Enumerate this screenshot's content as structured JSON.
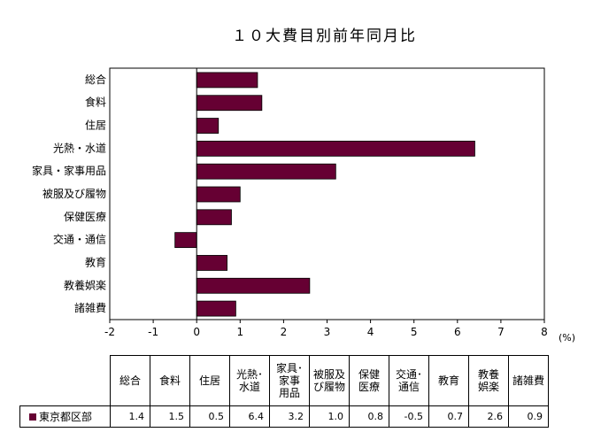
{
  "title": "１０大費目別前年同月比",
  "chart_data": {
    "type": "bar",
    "orientation": "horizontal",
    "title": "１０大費目別前年同月比",
    "categories": [
      "総合",
      "食料",
      "住居",
      "光熱・水道",
      "家具・家事用品",
      "被服及び履物",
      "保健医療",
      "交通・通信",
      "教育",
      "教養娯楽",
      "諸雑費"
    ],
    "series": [
      {
        "name": "東京都区部",
        "values": [
          1.4,
          1.5,
          0.5,
          6.4,
          3.2,
          1.0,
          0.8,
          -0.5,
          0.7,
          2.6,
          0.9
        ],
        "color": "#660033"
      }
    ],
    "xlim": [
      -2,
      8
    ],
    "xticks": [
      "-2",
      "-1",
      "0",
      "1",
      "2",
      "3",
      "4",
      "5",
      "6",
      "7",
      "8"
    ],
    "xunit": "(%)",
    "grid": false
  },
  "table": {
    "headers": [
      [
        "総合"
      ],
      [
        "食料"
      ],
      [
        "住居"
      ],
      [
        "光熱･",
        "水道"
      ],
      [
        "家具･",
        "家事",
        "用品"
      ],
      [
        "被服及",
        "び履物"
      ],
      [
        "保健",
        "医療"
      ],
      [
        "交通･",
        "通信"
      ],
      [
        "教育"
      ],
      [
        "教養",
        "娯楽"
      ],
      [
        "諸雑費"
      ]
    ],
    "row_label": "東京都区部",
    "values": [
      "1.4",
      "1.5",
      "0.5",
      "6.4",
      "3.2",
      "1.0",
      "0.8",
      "-0.5",
      "0.7",
      "2.6",
      "0.9"
    ]
  },
  "colors": {
    "bar": "#660033",
    "axis": "#000000"
  }
}
